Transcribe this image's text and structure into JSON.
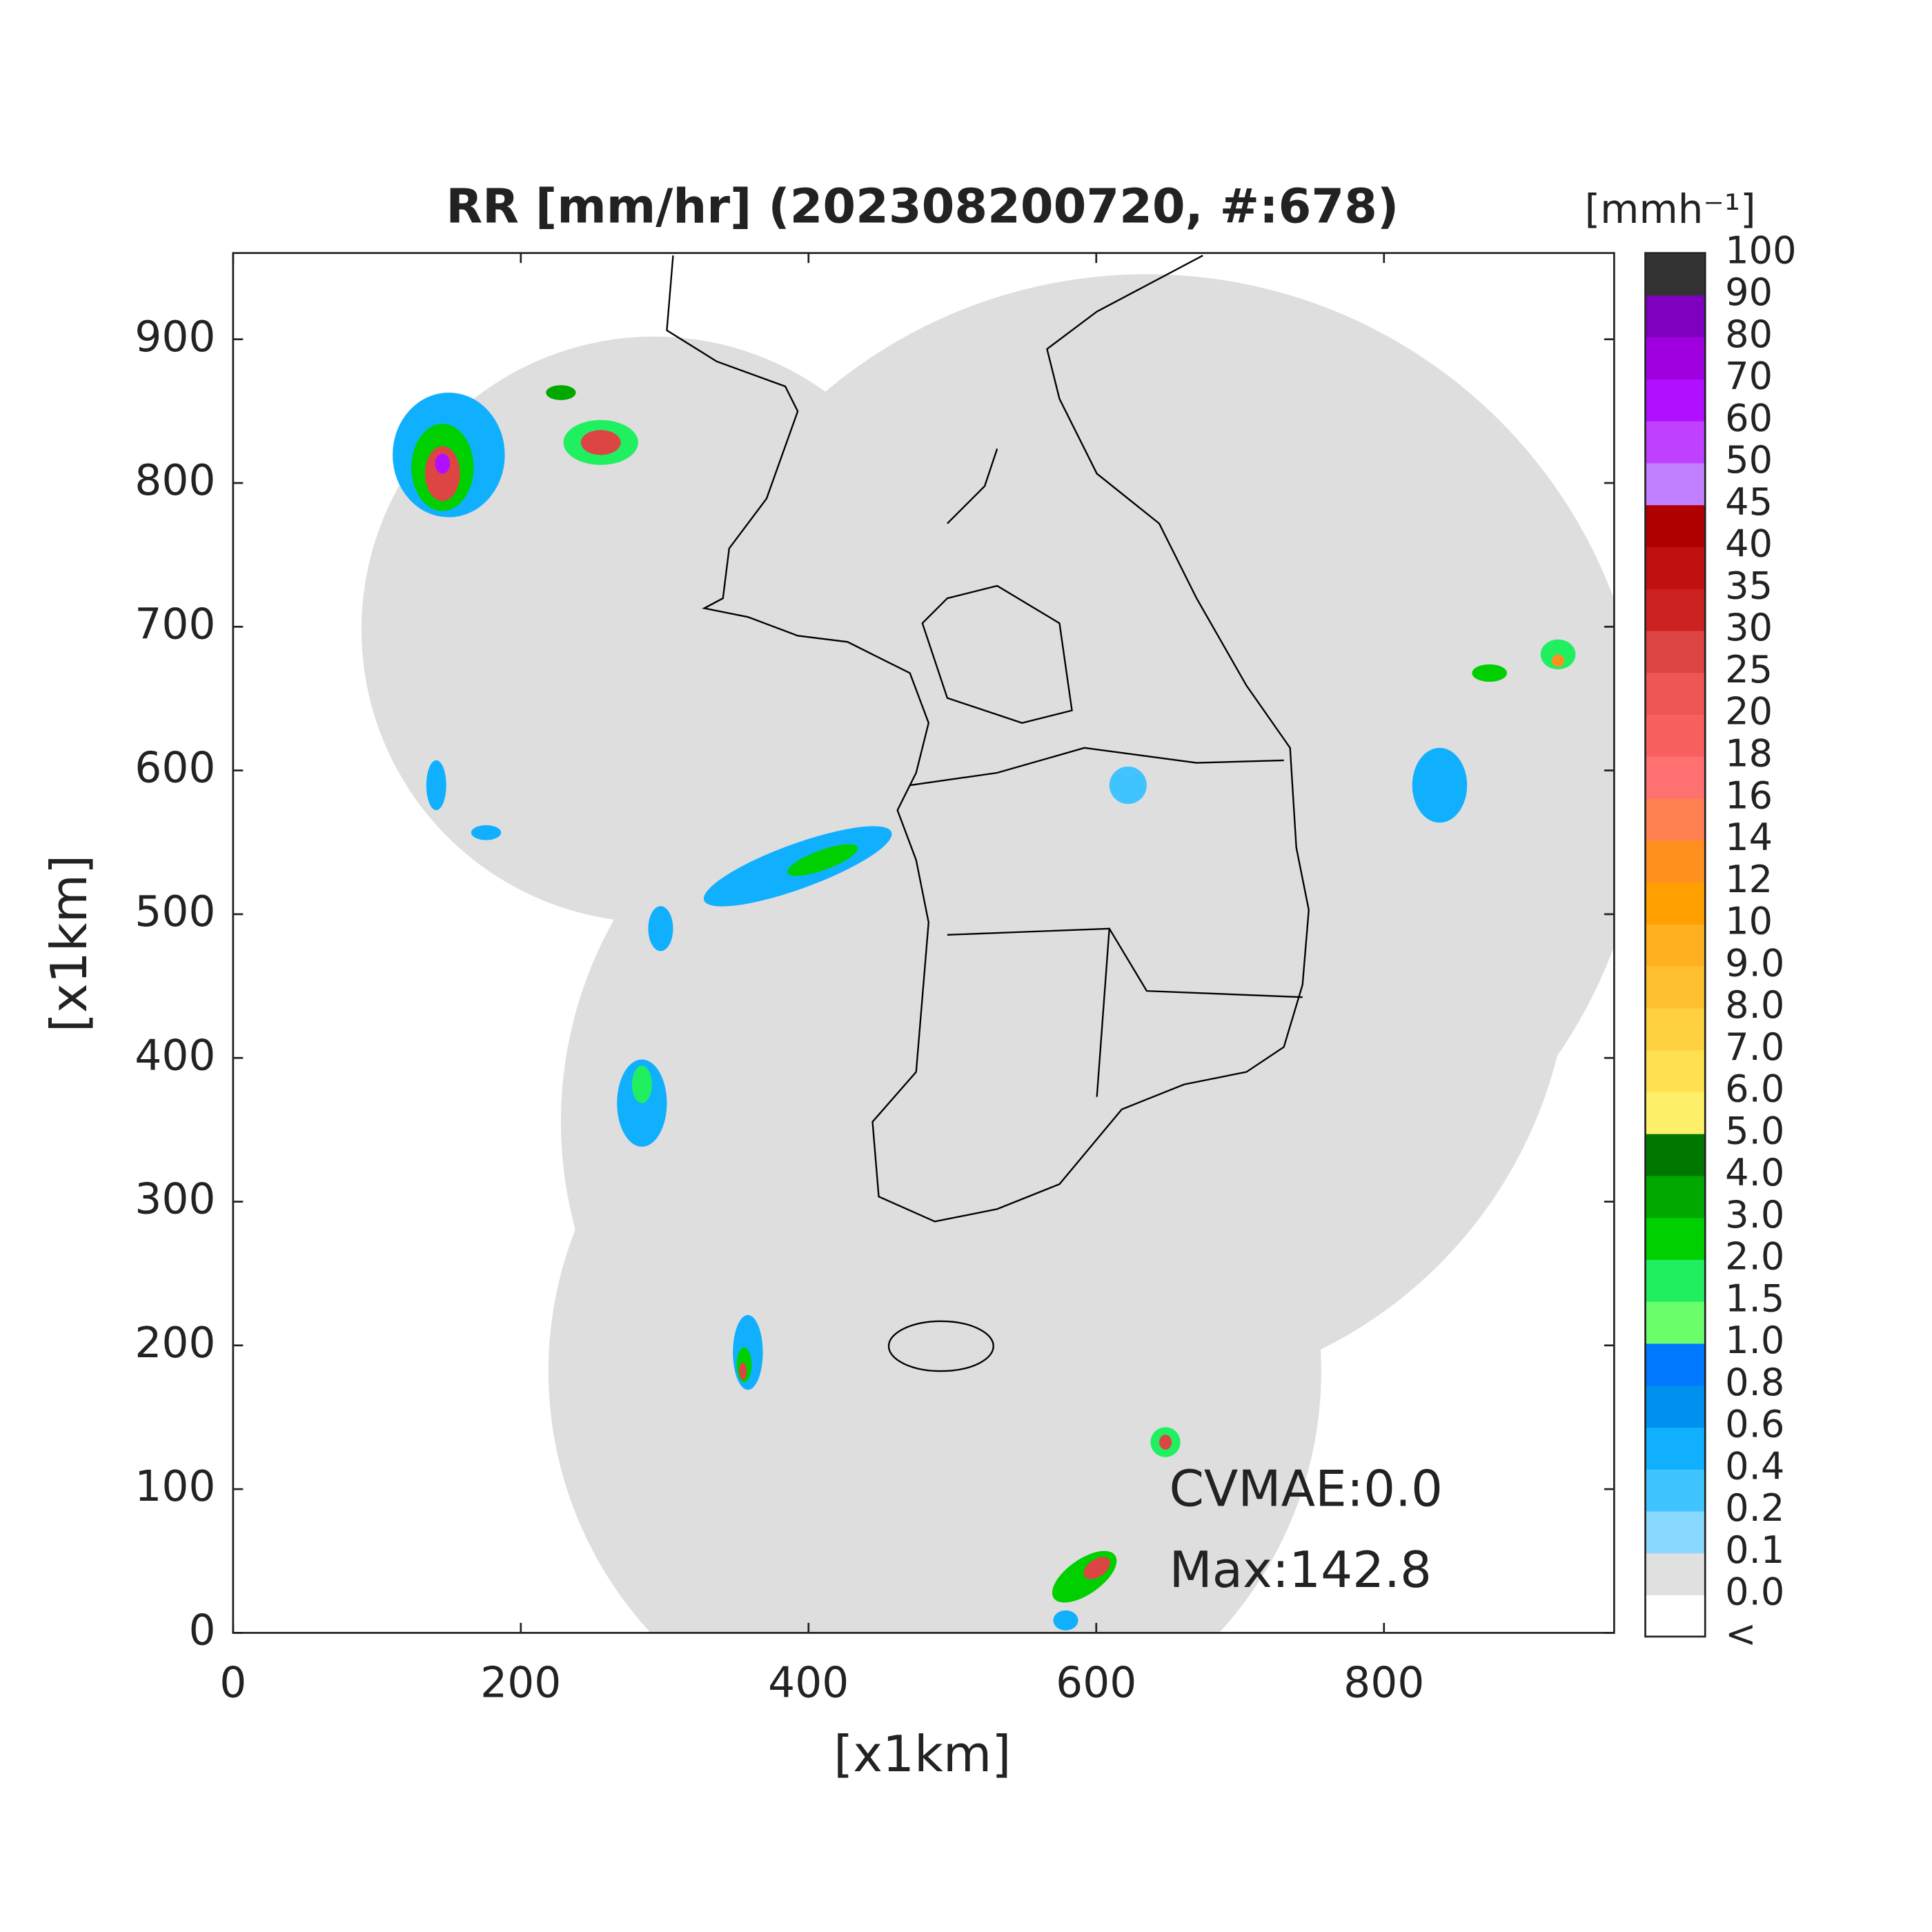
{
  "chart_data": {
    "type": "radar-map",
    "title": "RR [mm/hr] (202308200720, #:678)",
    "xlabel": "[x1km]",
    "ylabel": "[x1km]",
    "xlim": [
      0,
      960
    ],
    "ylim": [
      0,
      960
    ],
    "xticks": [
      0,
      200,
      400,
      600,
      800
    ],
    "yticks": [
      0,
      100,
      200,
      300,
      400,
      500,
      600,
      700,
      800,
      900
    ],
    "annotations": [
      "CVMAE:0.0",
      "Max:142.8"
    ],
    "colorbar": {
      "label": "[mmh⁻¹]",
      "ticks": [
        "<",
        {
          "value": 0,
          "label": "0.0"
        },
        0.1,
        0.2,
        0.4,
        0.6,
        0.8,
        {
          "value": 1,
          "label": "1.0"
        },
        1.5,
        {
          "value": 2,
          "label": "2.0"
        },
        {
          "value": 3,
          "label": "3.0"
        },
        {
          "value": 4,
          "label": "4.0"
        },
        {
          "value": 5,
          "label": "5.0"
        },
        {
          "value": 6,
          "label": "6.0"
        },
        {
          "value": 7,
          "label": "7.0"
        },
        {
          "value": 8,
          "label": "8.0"
        },
        {
          "value": 9,
          "label": "9.0"
        },
        10,
        12,
        14,
        16,
        18,
        20,
        25,
        30,
        35,
        40,
        45,
        50,
        60,
        70,
        80,
        90,
        100
      ],
      "colors": [
        "#ffffff",
        "#e0e0e0",
        "#88d8ff",
        "#40c4ff",
        "#10b0ff",
        "#0090f0",
        "#0078ff",
        "#6aff6a",
        "#20f060",
        "#00d000",
        "#00a800",
        "#007800",
        "#fff06a",
        "#ffe050",
        "#ffd040",
        "#ffc030",
        "#ffb020",
        "#ffa000",
        "#ff9020",
        "#ff8050",
        "#ff7070",
        "#f86060",
        "#ee5555",
        "#dd4444",
        "#cc2222",
        "#c01010",
        "#b00000",
        "#c080ff",
        "#c040ff",
        "#b010ff",
        "#a000e0",
        "#8000c0",
        "#333333"
      ]
    }
  }
}
